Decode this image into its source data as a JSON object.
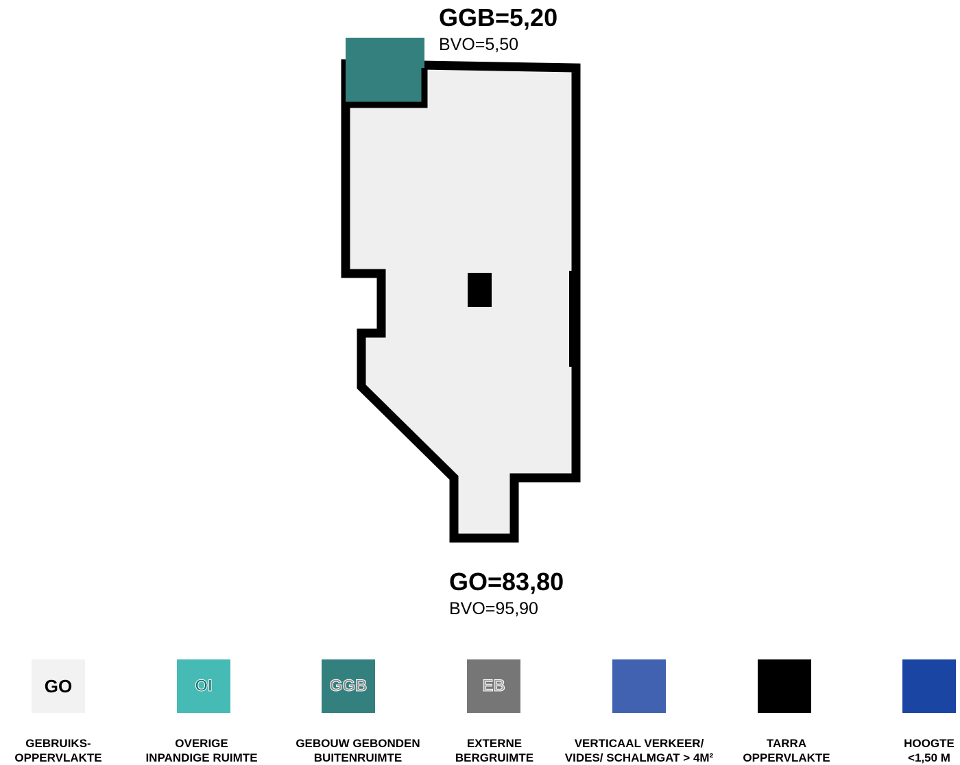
{
  "areas": {
    "ggb": {
      "main": "GGB=5,20",
      "sub": "BVO=5,50"
    },
    "go": {
      "main": "GO=83,80",
      "sub": "BVO=95,90"
    }
  },
  "colors": {
    "go_fill": "#efefef",
    "ggb_fill": "#34807e",
    "wall": "#000000"
  },
  "legend": [
    {
      "code": "GO",
      "color": "#f2f2f2",
      "line1": "GEBRUIKS-",
      "line2": "OPPERVLAKTE"
    },
    {
      "code": "OI",
      "color": "#46bab4",
      "line1": "OVERIGE",
      "line2": "INPANDIGE RUIMTE"
    },
    {
      "code": "GGB",
      "color": "#34807e",
      "line1": "GEBOUW GEBONDEN",
      "line2": "BUITENRUIMTE"
    },
    {
      "code": "EB",
      "color": "#767676",
      "line1": "EXTERNE",
      "line2": "BERGRUIMTE"
    },
    {
      "code": "",
      "color": "#4162b0",
      "line1": "VERTICAAL VERKEER/",
      "line2": "VIDES/ SCHALMGAT > 4M²"
    },
    {
      "code": "",
      "color": "#000000",
      "line1": "TARRA",
      "line2": "OPPERVLAKTE"
    },
    {
      "code": "",
      "color": "#1b45a2",
      "line1": "HOOGTE",
      "line2": "<1,50 M"
    }
  ]
}
